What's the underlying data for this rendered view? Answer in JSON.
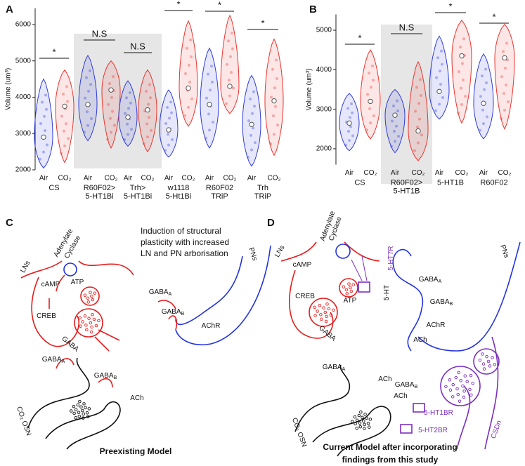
{
  "chart_data": [
    {
      "type": "violin",
      "panel_label": "A",
      "y_label": "Volume (um³)",
      "ylim": [
        2000,
        6450
      ],
      "yticks": [
        2000,
        3000,
        4000,
        5000,
        6000
      ],
      "colors": [
        "#2f3bd9",
        "#e8352e"
      ],
      "groups": [
        {
          "label": [
            "CS"
          ],
          "significance": "*",
          "shaded": false,
          "categories": [
            "Air",
            "CO₂"
          ],
          "mins": [
            2050,
            2200
          ],
          "medians": [
            2900,
            3750
          ],
          "maxs": [
            4500,
            4750
          ]
        },
        {
          "label": [
            "R60F02>",
            "5-HT1Bi"
          ],
          "significance": "N.S",
          "shaded": true,
          "categories": [
            "Air",
            "CO₂"
          ],
          "mins": [
            2800,
            2600
          ],
          "medians": [
            3800,
            4200
          ],
          "maxs": [
            5150,
            5000
          ]
        },
        {
          "label": [
            "Trh>",
            "5-HT1Bi"
          ],
          "significance": "N.S",
          "shaded": true,
          "categories": [
            "Air",
            "CO₂"
          ],
          "mins": [
            2650,
            2500
          ],
          "medians": [
            3450,
            3650
          ],
          "maxs": [
            4450,
            4750
          ]
        },
        {
          "label": [
            "w1118",
            "5-Ht1Bi"
          ],
          "significance": "*",
          "shaded": false,
          "categories": [
            "Air",
            "CO₂"
          ],
          "mins": [
            2350,
            3200
          ],
          "medians": [
            3100,
            4250
          ],
          "maxs": [
            4200,
            6100
          ]
        },
        {
          "label": [
            "R60F02",
            "TRiP"
          ],
          "significance": "*",
          "shaded": false,
          "categories": [
            "Air",
            "CO₂"
          ],
          "mins": [
            2600,
            3550
          ],
          "medians": [
            3800,
            4300
          ],
          "maxs": [
            5350,
            6250
          ]
        },
        {
          "label": [
            "Trh",
            "TRiP"
          ],
          "significance": "*",
          "shaded": false,
          "categories": [
            "Air",
            "CO₂"
          ],
          "mins": [
            2100,
            2400
          ],
          "medians": [
            3250,
            3900
          ],
          "maxs": [
            4600,
            5600
          ]
        }
      ]
    },
    {
      "type": "violin",
      "panel_label": "B",
      "y_label": "Volume (um³)",
      "ylim": [
        1600,
        5400
      ],
      "yticks": [
        2000,
        3000,
        4000,
        5000
      ],
      "colors": [
        "#2f3bd9",
        "#e8352e"
      ],
      "groups": [
        {
          "label": [
            "CS"
          ],
          "significance": "*",
          "shaded": false,
          "categories": [
            "Air",
            "CO₂"
          ],
          "mins": [
            1950,
            2250
          ],
          "medians": [
            2650,
            3200
          ],
          "maxs": [
            3400,
            4500
          ]
        },
        {
          "label": [
            "R60F02>",
            "5-HT1B"
          ],
          "significance": "N.S",
          "shaded": true,
          "categories": [
            "Air",
            "CO₂"
          ],
          "mins": [
            1900,
            1700
          ],
          "medians": [
            2850,
            2450
          ],
          "maxs": [
            3500,
            4200
          ]
        },
        {
          "label": [
            "5-HT1B"
          ],
          "significance": "*",
          "shaded": false,
          "categories": [
            "Air",
            "CO₂"
          ],
          "mins": [
            2750,
            2650
          ],
          "medians": [
            3450,
            4350
          ],
          "maxs": [
            4850,
            5250
          ]
        },
        {
          "label": [
            "R60F02"
          ],
          "significance": "*",
          "shaded": false,
          "categories": [
            "Air",
            "CO₂"
          ],
          "mins": [
            2250,
            2500
          ],
          "medians": [
            3150,
            4300
          ],
          "maxs": [
            4400,
            5150
          ]
        }
      ]
    }
  ],
  "diagrams": {
    "C": {
      "panel_label": "C",
      "title": [
        "Induction of structural",
        "plasticity with increased",
        "LN and PN arborisation"
      ],
      "caption": [
        "Preexisting Model"
      ],
      "labels": [
        {
          "text": "LNs"
        },
        {
          "text": "Adenylate"
        },
        {
          "text": "Cyclase"
        },
        {
          "text": "cAMP"
        },
        {
          "text": "ATP"
        },
        {
          "text": "CREB"
        },
        {
          "text": "GABA"
        },
        {
          "text": "PNs"
        },
        {
          "text": "GABA",
          "sub": "A"
        },
        {
          "text": "GABA",
          "sub": "B"
        },
        {
          "text": "AChR"
        },
        {
          "text": "GABA",
          "sub": "A"
        },
        {
          "text": "GABA",
          "sub": "B"
        },
        {
          "text": "ACh"
        },
        {
          "text": "CO₂ OSN"
        }
      ]
    },
    "D": {
      "panel_label": "D",
      "caption": [
        "Current Model after incorporating",
        "findings from this study"
      ],
      "labels": [
        {
          "text": "LNs"
        },
        {
          "text": "Adenylate"
        },
        {
          "text": "Cyclase"
        },
        {
          "text": "cAMP"
        },
        {
          "text": "ATP"
        },
        {
          "text": "CREB"
        },
        {
          "text": "GABA"
        },
        {
          "text": "5-HT7R",
          "color": "#7b2fbe"
        },
        {
          "text": "5-HT"
        },
        {
          "text": "PNs"
        },
        {
          "text": "GABA",
          "sub": "A"
        },
        {
          "text": "GABA",
          "sub": "B"
        },
        {
          "text": "AChR"
        },
        {
          "text": "ACh"
        },
        {
          "text": "GABA",
          "sub": "A"
        },
        {
          "text": "ACh"
        },
        {
          "text": "GABA",
          "sub": "B"
        },
        {
          "text": "ACh"
        },
        {
          "text": "5-HT1BR",
          "color": "#7b2fbe"
        },
        {
          "text": "5-HT2BR",
          "color": "#7b2fbe"
        },
        {
          "text": "CO₂ OSN"
        },
        {
          "text": "CSDn",
          "color": "#7b2fbe"
        }
      ]
    }
  }
}
